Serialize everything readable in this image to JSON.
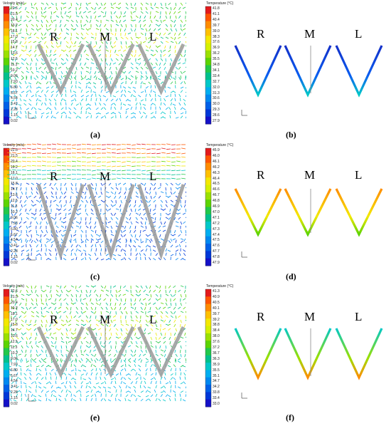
{
  "figure": {
    "velocity_title": "Velocity (m/s)",
    "temperature_title": "Temperature (°C)",
    "section_labels": [
      "R",
      "M",
      "L"
    ],
    "velocity_ticks": [
      "22.6",
      "21.5",
      "20.4",
      "19.2",
      "18.1",
      "17.0",
      "15.8",
      "14.7",
      "13.6",
      "12.5",
      "11.3",
      "10.2",
      "9.06",
      "7.93",
      "6.80",
      "5.67",
      "4.54",
      "3.41",
      "2.28",
      "1.15",
      "0.02"
    ],
    "panels": [
      {
        "id": "a",
        "caption": "(a)",
        "kind": "velocity"
      },
      {
        "id": "b",
        "caption": "(b)",
        "kind": "temperature",
        "ticks": [
          "41.8",
          "41.1",
          "40.4",
          "39.7",
          "39.0",
          "38.3",
          "37.6",
          "36.9",
          "36.2",
          "35.5",
          "34.8",
          "34.1",
          "33.4",
          "32.7",
          "32.0",
          "31.3",
          "30.6",
          "30.0",
          "29.3",
          "28.6",
          "27.9"
        ]
      },
      {
        "id": "c",
        "caption": "(c)",
        "kind": "velocity"
      },
      {
        "id": "d",
        "caption": "(d)",
        "kind": "temperature",
        "ticks": [
          "45.9",
          "46.0",
          "46.1",
          "46.2",
          "46.3",
          "46.4",
          "46.5",
          "46.6",
          "46.7",
          "46.8",
          "46.9",
          "47.0",
          "47.1",
          "47.2",
          "47.3",
          "47.4",
          "47.5",
          "47.6",
          "47.7",
          "47.8",
          "47.9"
        ]
      },
      {
        "id": "e",
        "caption": "(e)",
        "kind": "velocity"
      },
      {
        "id": "f",
        "caption": "(f)",
        "kind": "temperature",
        "ticks": [
          "41.3",
          "40.9",
          "40.5",
          "40.1",
          "39.7",
          "39.2",
          "38.8",
          "38.4",
          "38.0",
          "37.6",
          "37.2",
          "36.7",
          "36.3",
          "35.9",
          "35.5",
          "35.1",
          "34.7",
          "34.2",
          "33.8",
          "33.4",
          "33.0"
        ]
      }
    ],
    "colors": {
      "scale": [
        "#e31a1c",
        "#ff5500",
        "#ff8c00",
        "#ffc000",
        "#f4e800",
        "#d6f000",
        "#9be000",
        "#5cd400",
        "#22c84a",
        "#00c08c",
        "#00c8c8",
        "#00aef0",
        "#0088f0",
        "#0060e8",
        "#0038d8",
        "#1410c8"
      ],
      "surface": "#9a9a9a"
    }
  }
}
